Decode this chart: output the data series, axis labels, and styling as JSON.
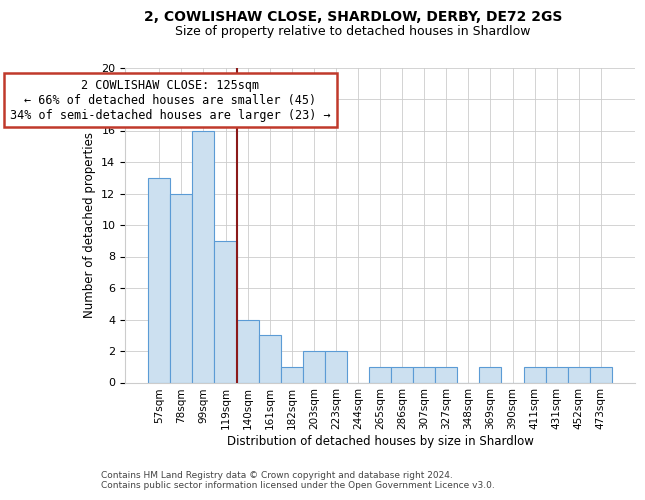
{
  "title": "2, COWLISHAW CLOSE, SHARDLOW, DERBY, DE72 2GS",
  "subtitle": "Size of property relative to detached houses in Shardlow",
  "xlabel": "Distribution of detached houses by size in Shardlow",
  "ylabel": "Number of detached properties",
  "footnote1": "Contains HM Land Registry data © Crown copyright and database right 2024.",
  "footnote2": "Contains public sector information licensed under the Open Government Licence v3.0.",
  "categories": [
    "57sqm",
    "78sqm",
    "99sqm",
    "119sqm",
    "140sqm",
    "161sqm",
    "182sqm",
    "203sqm",
    "223sqm",
    "244sqm",
    "265sqm",
    "286sqm",
    "307sqm",
    "327sqm",
    "348sqm",
    "369sqm",
    "390sqm",
    "411sqm",
    "431sqm",
    "452sqm",
    "473sqm"
  ],
  "values": [
    13,
    12,
    16,
    9,
    4,
    3,
    1,
    2,
    2,
    0,
    1,
    1,
    1,
    1,
    0,
    1,
    0,
    1,
    1,
    1,
    1
  ],
  "bar_color": "#cce0f0",
  "bar_edge_color": "#5B9BD5",
  "annotation_line1": "2 COWLISHAW CLOSE: 125sqm",
  "annotation_line2": "← 66% of detached houses are smaller (45)",
  "annotation_line3": "34% of semi-detached houses are larger (23) →",
  "vline_position": 3.5,
  "vline_color": "#8B1A1A",
  "ylim": [
    0,
    20
  ],
  "yticks": [
    0,
    2,
    4,
    6,
    8,
    10,
    12,
    14,
    16,
    18,
    20
  ],
  "background_color": "#ffffff",
  "grid_color": "#cccccc"
}
